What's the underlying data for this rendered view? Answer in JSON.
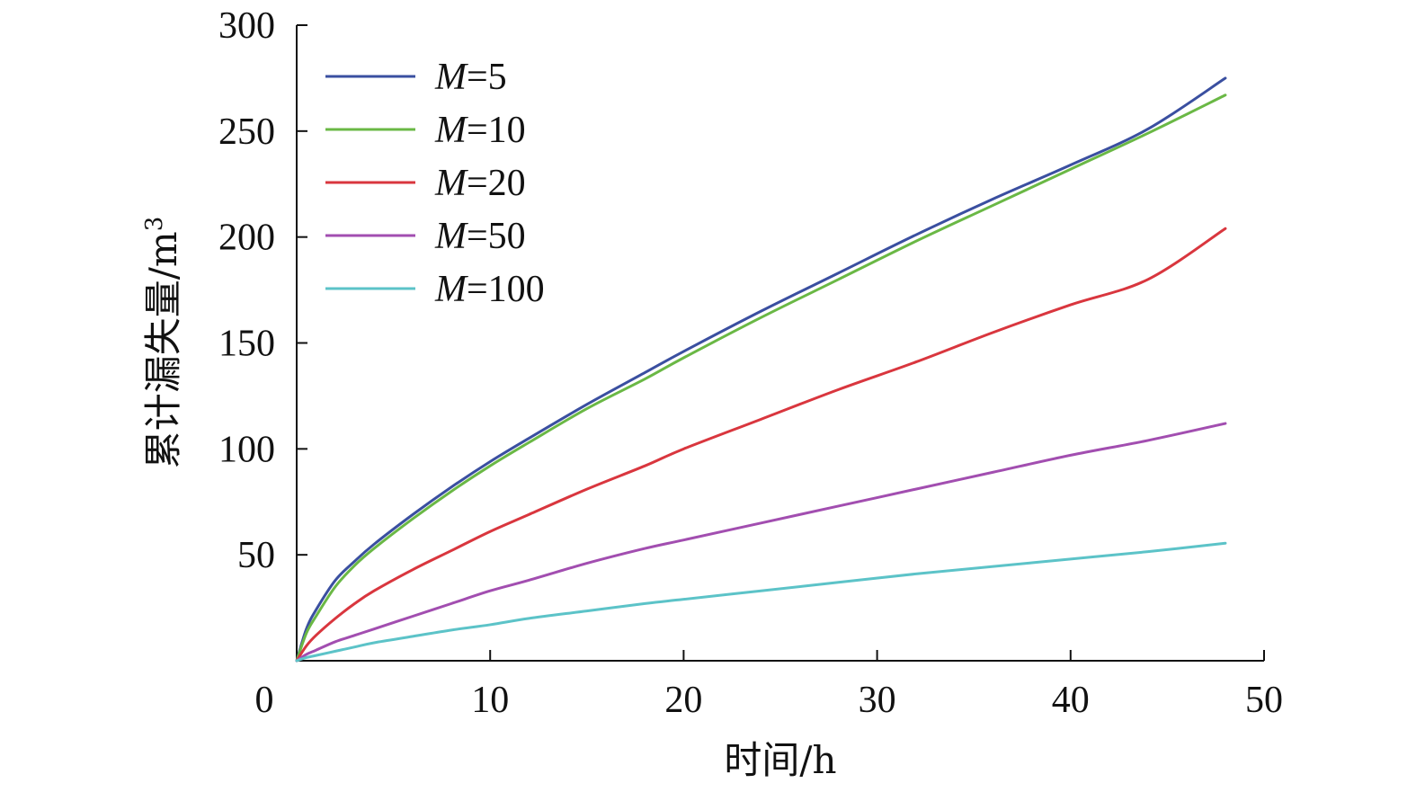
{
  "chart_data": {
    "type": "line",
    "xlabel": "时间/h",
    "ylabel": "累计漏失量/m",
    "ylabel_superscript": "3",
    "xlim": [
      0,
      50
    ],
    "ylim": [
      0,
      300
    ],
    "x_ticks": [
      0,
      10,
      20,
      30,
      40,
      50
    ],
    "y_ticks": [
      50,
      100,
      150,
      200,
      250,
      300
    ],
    "x_tick_labels": [
      "0",
      "10",
      "20",
      "30",
      "40",
      "50"
    ],
    "y_tick_labels": [
      "50",
      "100",
      "150",
      "200",
      "250",
      "300"
    ],
    "grid": false,
    "legend_position": "top-left",
    "x": [
      0,
      0.5,
      1,
      2,
      3,
      4,
      6,
      8,
      10,
      12,
      15,
      18,
      20,
      24,
      28,
      32,
      36,
      40,
      44,
      48
    ],
    "series": [
      {
        "name": "M=5",
        "name_var": "M",
        "name_value": "=5",
        "color": "#3a4fa0",
        "values": [
          0,
          15,
          24,
          38,
          47,
          55,
          69,
          82,
          94,
          105,
          121,
          136,
          146,
          165,
          183,
          201,
          218,
          234,
          251,
          275
        ]
      },
      {
        "name": "M=10",
        "name_var": "M",
        "name_value": "=10",
        "color": "#6ab845",
        "values": [
          0,
          13,
          21,
          35,
          45,
          53,
          67,
          80,
          92,
          103,
          119,
          133,
          143,
          162,
          180,
          198,
          215,
          232,
          249,
          267
        ]
      },
      {
        "name": "M=20",
        "name_var": "M",
        "name_value": "=20",
        "color": "#d9363e",
        "values": [
          0,
          7,
          12,
          20,
          27,
          33,
          43,
          52,
          61,
          69,
          81,
          92,
          100,
          114,
          128,
          141,
          155,
          168,
          180,
          204
        ]
      },
      {
        "name": "M=50",
        "name_var": "M",
        "name_value": "=50",
        "color": "#a24eb0",
        "values": [
          0,
          3,
          5,
          9,
          12,
          15,
          21,
          27,
          33,
          38,
          46,
          53,
          57,
          65,
          73,
          81,
          89,
          97,
          104,
          112
        ]
      },
      {
        "name": "M=100",
        "name_var": "M",
        "name_value": "=100",
        "color": "#5cc3c8",
        "values": [
          0,
          1.5,
          2.5,
          4.5,
          6.5,
          8.5,
          11.5,
          14.5,
          17,
          20,
          23.5,
          27,
          29,
          33,
          37,
          41,
          44.5,
          48,
          51.5,
          55.5
        ]
      }
    ]
  }
}
